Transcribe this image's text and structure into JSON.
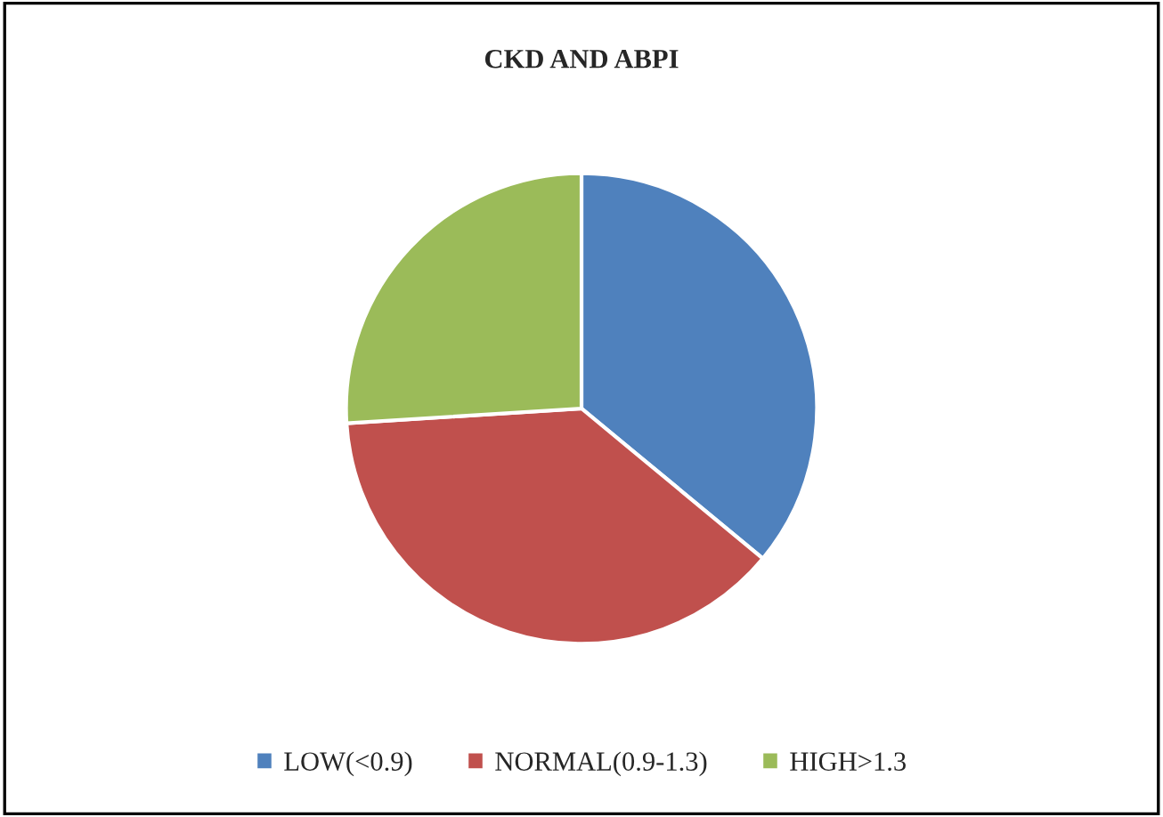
{
  "chart_data": {
    "type": "pie",
    "title": "CKD AND ABPI",
    "categories": [
      "LOW(<0.9)",
      "NORMAL(0.9-1.3)",
      "HIGH>1.3"
    ],
    "values": [
      36,
      38,
      26
    ],
    "colors": [
      "#4f81bd",
      "#c0504d",
      "#9bbb59"
    ],
    "legend": "bottom"
  }
}
